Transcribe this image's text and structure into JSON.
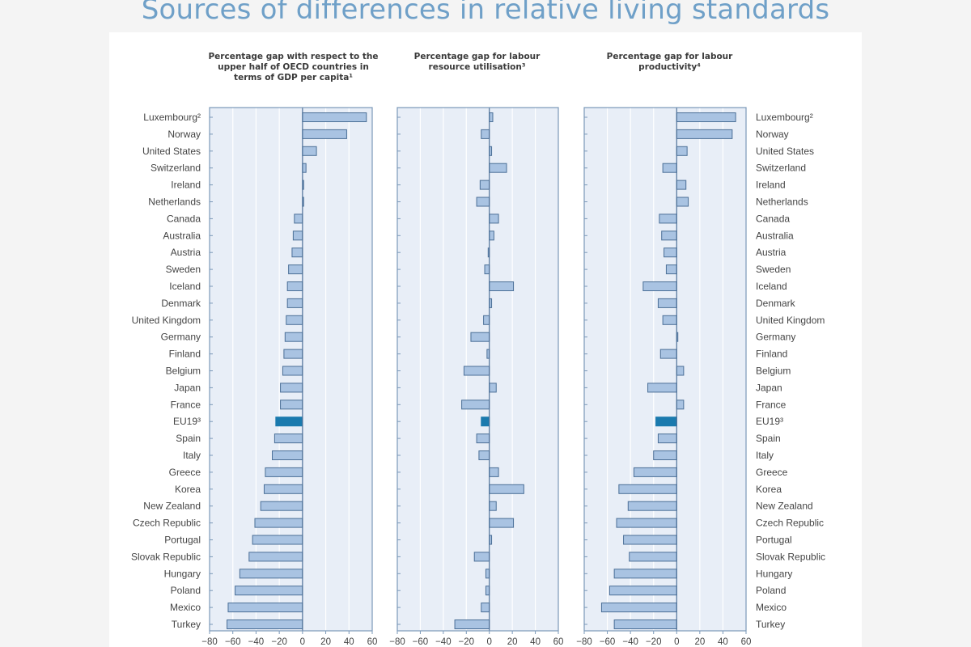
{
  "slide": {
    "title": "Sources of differences in relative living standards"
  },
  "colors": {
    "plot_bg": "#e8eef7",
    "grid": "#ffffff",
    "bar_fill": "#a9c3e2",
    "bar_stroke": "#4b6f97",
    "highlight_fill": "#1a7aae",
    "frame": "#7a98b8"
  },
  "chart_data": [
    {
      "type": "bar",
      "orientation": "horizontal",
      "title": "Percentage gap with respect to the upper half of OECD countries in terms of GDP per capita¹",
      "categories": [
        "Luxembourg²",
        "Norway",
        "United States",
        "Switzerland",
        "Ireland",
        "Netherlands",
        "Canada",
        "Australia",
        "Austria",
        "Sweden",
        "Iceland",
        "Denmark",
        "United Kingdom",
        "Germany",
        "Finland",
        "Belgium",
        "Japan",
        "France",
        "EU19³",
        "Spain",
        "Italy",
        "Greece",
        "Korea",
        "New Zealand",
        "Czech Republic",
        "Portugal",
        "Slovak Republic",
        "Hungary",
        "Poland",
        "Mexico",
        "Turkey"
      ],
      "values": [
        55,
        38,
        12,
        3,
        1,
        1,
        -7,
        -8,
        -9,
        -12,
        -13,
        -13,
        -14,
        -15,
        -16,
        -17,
        -19,
        -19,
        -23,
        -24,
        -26,
        -32,
        -33,
        -36,
        -41,
        -43,
        -46,
        -54,
        -58,
        -64,
        -65
      ],
      "highlight": "EU19³",
      "xlim": [
        -80,
        60
      ],
      "xticks": [
        -80,
        -60,
        -40,
        -20,
        0,
        20,
        40,
        60
      ],
      "grid": true,
      "legend": "none"
    },
    {
      "type": "bar",
      "orientation": "horizontal",
      "title": "Percentage gap for labour resource utilisation³",
      "categories": [
        "Luxembourg²",
        "Norway",
        "United States",
        "Switzerland",
        "Ireland",
        "Netherlands",
        "Canada",
        "Australia",
        "Austria",
        "Sweden",
        "Iceland",
        "Denmark",
        "United Kingdom",
        "Germany",
        "Finland",
        "Belgium",
        "Japan",
        "France",
        "EU19³",
        "Spain",
        "Italy",
        "Greece",
        "Korea",
        "New Zealand",
        "Czech Republic",
        "Portugal",
        "Slovak Republic",
        "Hungary",
        "Poland",
        "Mexico",
        "Turkey"
      ],
      "values": [
        3,
        -7,
        2,
        15,
        -8,
        -11,
        8,
        4,
        -1,
        -4,
        21,
        2,
        -5,
        -16,
        -2,
        -22,
        6,
        -24,
        -7,
        -11,
        -9,
        8,
        30,
        6,
        21,
        2,
        -13,
        -3,
        -3,
        -7,
        -30
      ],
      "highlight": "EU19³",
      "xlim": [
        -80,
        60
      ],
      "xticks": [
        -80,
        -60,
        -40,
        -20,
        0,
        20,
        40,
        60
      ],
      "grid": true,
      "legend": "none"
    },
    {
      "type": "bar",
      "orientation": "horizontal",
      "title": "Percentage gap for labour productivity⁴",
      "categories": [
        "Luxembourg²",
        "Norway",
        "United States",
        "Switzerland",
        "Ireland",
        "Netherlands",
        "Canada",
        "Australia",
        "Austria",
        "Sweden",
        "Iceland",
        "Denmark",
        "United Kingdom",
        "Germany",
        "Finland",
        "Belgium",
        "Japan",
        "France",
        "EU19³",
        "Spain",
        "Italy",
        "Greece",
        "Korea",
        "New Zealand",
        "Czech Republic",
        "Portugal",
        "Slovak Republic",
        "Hungary",
        "Poland",
        "Mexico",
        "Turkey"
      ],
      "values": [
        51,
        48,
        9,
        -12,
        8,
        10,
        -15,
        -13,
        -11,
        -9,
        -29,
        -16,
        -12,
        1,
        -14,
        6,
        -25,
        6,
        -18,
        -16,
        -20,
        -37,
        -50,
        -42,
        -52,
        -46,
        -41,
        -54,
        -58,
        -65,
        -54
      ],
      "highlight": "EU19³",
      "xlim": [
        -80,
        60
      ],
      "xticks": [
        -80,
        -60,
        -40,
        -20,
        0,
        20,
        40,
        60
      ],
      "grid": true,
      "legend": "none"
    }
  ]
}
